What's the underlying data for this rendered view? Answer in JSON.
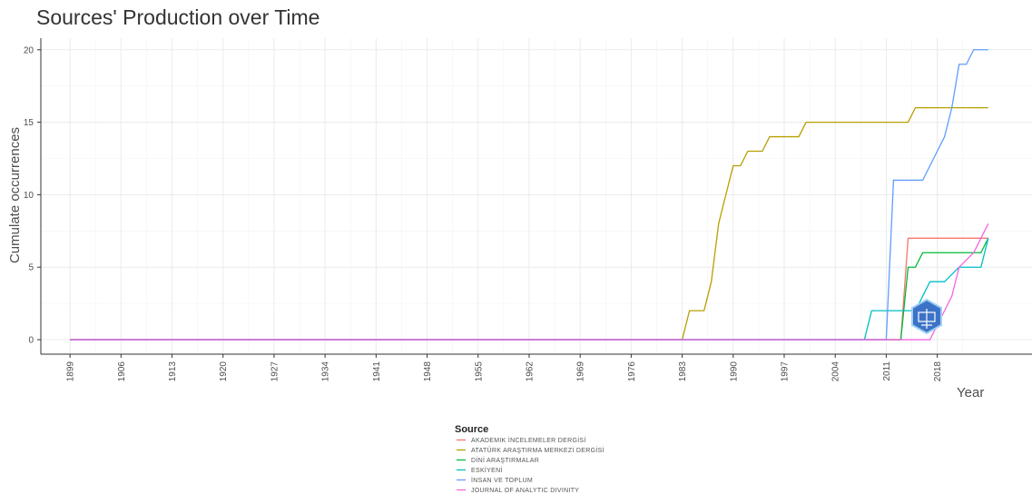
{
  "chart_data": {
    "type": "line",
    "title": "Sources' Production over Time",
    "xlabel": "Year",
    "ylabel": "Cumulate occurrences",
    "xlim": [
      1895,
      2031
    ],
    "ylim": [
      -1,
      20.8
    ],
    "x_ticks": [
      1899,
      1906,
      1913,
      1920,
      1927,
      1934,
      1941,
      1948,
      1955,
      1962,
      1969,
      1976,
      1983,
      1990,
      1997,
      2004,
      2011,
      2018
    ],
    "y_ticks": [
      0,
      5,
      10,
      15,
      20
    ],
    "grid": true,
    "legend": {
      "title": "Source",
      "position": "bottom"
    },
    "series": [
      {
        "name": "AKADEMIK İNCELEMELER DERGİSİ",
        "color": "#f8766d",
        "points": [
          [
            1899,
            0
          ],
          [
            2013,
            0
          ],
          [
            2014,
            7
          ],
          [
            2025,
            7
          ]
        ]
      },
      {
        "name": "ATATÜRK ARAŞTIRMA MERKEZİ DERGİSİ",
        "color": "#b79f00",
        "points": [
          [
            1899,
            0
          ],
          [
            1983,
            0
          ],
          [
            1984,
            2
          ],
          [
            1986,
            2
          ],
          [
            1987,
            4
          ],
          [
            1988,
            8
          ],
          [
            1989,
            10
          ],
          [
            1990,
            12
          ],
          [
            1991,
            12
          ],
          [
            1992,
            13
          ],
          [
            1994,
            13
          ],
          [
            1995,
            14
          ],
          [
            1999,
            14
          ],
          [
            2000,
            15
          ],
          [
            2014,
            15
          ],
          [
            2015,
            16
          ],
          [
            2025,
            16
          ]
        ]
      },
      {
        "name": "DİNİ ARAŞTIRMALAR",
        "color": "#00ba38",
        "points": [
          [
            1899,
            0
          ],
          [
            2013,
            0
          ],
          [
            2014,
            5
          ],
          [
            2015,
            5
          ],
          [
            2016,
            6
          ],
          [
            2024,
            6
          ],
          [
            2025,
            7
          ]
        ]
      },
      {
        "name": "ESKİYENİ",
        "color": "#00bfc4",
        "points": [
          [
            1899,
            0
          ],
          [
            2008,
            0
          ],
          [
            2009,
            2
          ],
          [
            2015,
            2
          ],
          [
            2017,
            4
          ],
          [
            2019,
            4
          ],
          [
            2021,
            5
          ],
          [
            2024,
            5
          ],
          [
            2025,
            7
          ]
        ]
      },
      {
        "name": "İNSAN VE TOPLUM",
        "color": "#619cff",
        "points": [
          [
            1899,
            0
          ],
          [
            2011,
            0
          ],
          [
            2012,
            11
          ],
          [
            2016,
            11
          ],
          [
            2017,
            12
          ],
          [
            2018,
            13
          ],
          [
            2019,
            14
          ],
          [
            2020,
            16
          ],
          [
            2021,
            19
          ],
          [
            2022,
            19
          ],
          [
            2023,
            20
          ],
          [
            2025,
            20
          ]
        ]
      },
      {
        "name": "JOURNAL OF ANALYTIC DIVINITY",
        "color": "#f564e3",
        "points": [
          [
            1899,
            0
          ],
          [
            2017,
            0
          ],
          [
            2018,
            1
          ],
          [
            2019,
            2
          ],
          [
            2020,
            3
          ],
          [
            2021,
            5
          ],
          [
            2023,
            6
          ],
          [
            2024,
            7
          ],
          [
            2025,
            8
          ]
        ]
      }
    ]
  }
}
